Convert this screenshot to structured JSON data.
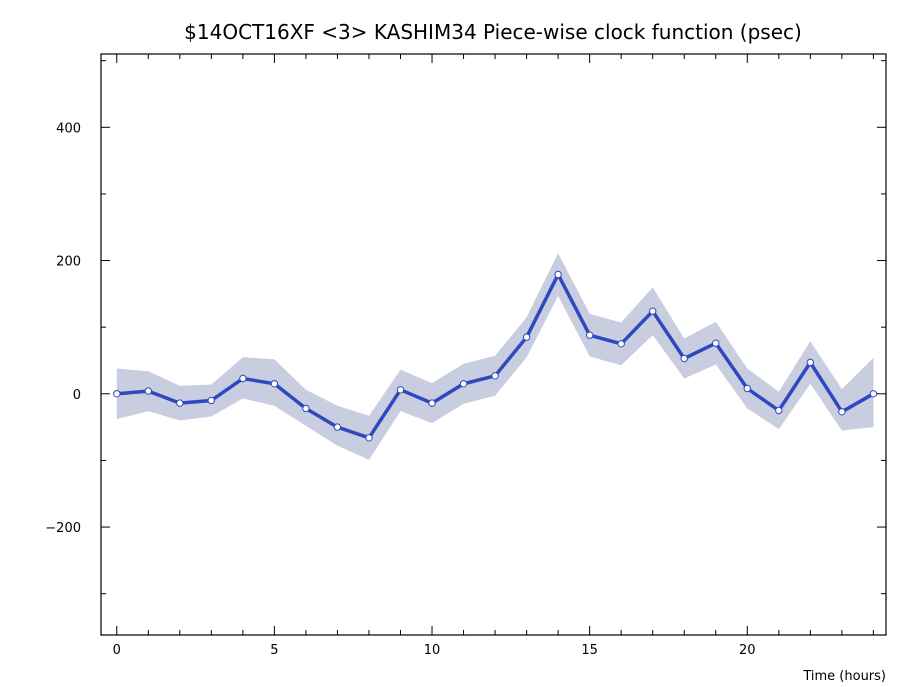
{
  "chart_data": {
    "type": "line",
    "title": "$14OCT16XF <3>  KASHIM34  Piece-wise clock function (psec)",
    "xlabel": "Time (hours)",
    "ylabel": "",
    "xlim": [
      -0.5,
      24.4
    ],
    "ylim": [
      -362,
      510
    ],
    "x_ticks": [
      0,
      5,
      10,
      15,
      20
    ],
    "y_ticks": [
      -200,
      0,
      200,
      400
    ],
    "x_tick_labels": [
      "0",
      "5",
      "10",
      "15",
      "20"
    ],
    "y_tick_labels": [
      "−200",
      "0",
      "200",
      "400"
    ],
    "grid": false,
    "series": [
      {
        "x": [
          0,
          1,
          2,
          3,
          4,
          5,
          6,
          7,
          8,
          9,
          10,
          11,
          12,
          13,
          14,
          15,
          16,
          17,
          18,
          19,
          20,
          21,
          22,
          23,
          24
        ],
        "values": [
          0,
          4,
          -14,
          -10,
          23,
          15,
          -22,
          -50,
          -66,
          6,
          -14,
          15,
          27,
          85,
          179,
          88,
          75,
          124,
          53,
          76,
          8,
          -25,
          47,
          -27,
          0
        ],
        "upper": [
          38,
          34,
          12,
          14,
          55,
          52,
          6,
          -18,
          -33,
          36,
          16,
          45,
          57,
          115,
          211,
          120,
          107,
          160,
          83,
          108,
          38,
          3,
          79,
          7,
          54
        ],
        "lower": [
          -38,
          -26,
          -40,
          -34,
          -7,
          -18,
          -48,
          -78,
          -99,
          -26,
          -44,
          -15,
          -3,
          55,
          147,
          56,
          43,
          88,
          23,
          44,
          -22,
          -53,
          15,
          -55,
          -50
        ]
      }
    ],
    "colors": {
      "line": "#2e48c0",
      "band": "#c9cde0",
      "marker_fill": "#ffffff",
      "axis": "#000000"
    }
  }
}
